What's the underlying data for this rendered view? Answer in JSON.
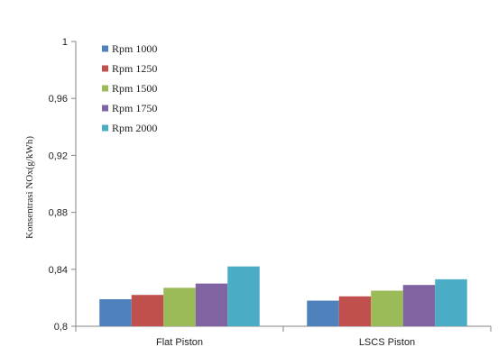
{
  "chart_data": {
    "type": "bar",
    "title": "",
    "xlabel": "",
    "ylabel": "Konsentrasi NOx(g/kWh)",
    "categories": [
      "Flat Piston",
      "LSCS Piston"
    ],
    "ylim": [
      0.8,
      1.0
    ],
    "yticks": [
      "0,8",
      "0,84",
      "0,88",
      "0,92",
      "0,96",
      "1"
    ],
    "ytick_values": [
      0.8,
      0.84,
      0.88,
      0.92,
      0.96,
      1.0
    ],
    "grid": false,
    "legend_position": "top-left",
    "series": [
      {
        "name": "Rpm 1000",
        "color": "#4f81bd",
        "values": [
          0.819,
          0.818
        ]
      },
      {
        "name": "Rpm 1250",
        "color": "#c0504d",
        "values": [
          0.822,
          0.821
        ]
      },
      {
        "name": "Rpm 1500",
        "color": "#9bbb59",
        "values": [
          0.827,
          0.825
        ]
      },
      {
        "name": "Rpm 1750",
        "color": "#8064a2",
        "values": [
          0.83,
          0.829
        ]
      },
      {
        "name": "Rpm 2000",
        "color": "#4bacc6",
        "values": [
          0.842,
          0.833
        ]
      }
    ]
  }
}
